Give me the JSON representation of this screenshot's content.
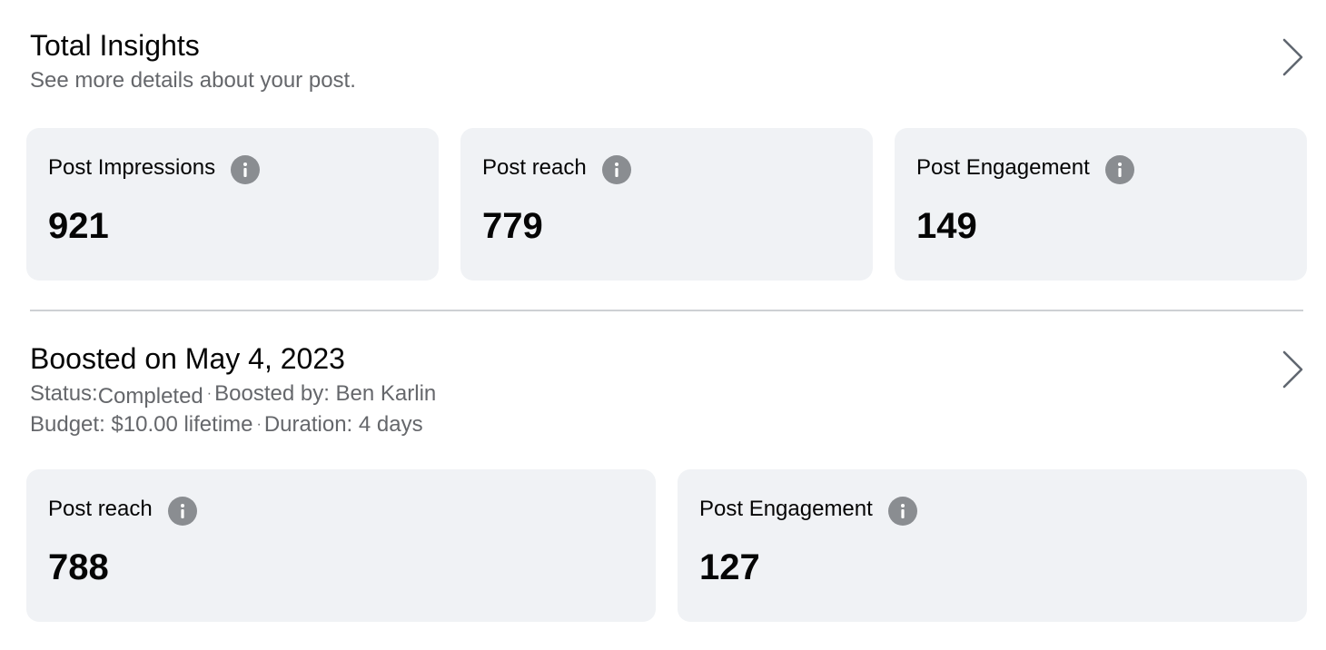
{
  "total_insights": {
    "title": "Total Insights",
    "subtitle": "See more details about your post.",
    "chevron_icon": "chevron-right-icon",
    "cards": [
      {
        "label": "Post Impressions",
        "value": "921",
        "icon": "info-icon"
      },
      {
        "label": "Post reach",
        "value": "779",
        "icon": "info-icon"
      },
      {
        "label": "Post Engagement",
        "value": "149",
        "icon": "info-icon"
      }
    ]
  },
  "boost": {
    "title": "Boosted on May 4, 2023",
    "status_label": "Status:",
    "status_value": "Completed",
    "separator": "·",
    "boosted_by": "Boosted by: Ben Karlin",
    "budget": "Budget: $10.00 lifetime",
    "duration": "Duration: 4 days",
    "chevron_icon": "chevron-right-icon",
    "cards": [
      {
        "label": "Post reach",
        "value": "788",
        "icon": "info-icon"
      },
      {
        "label": "Post Engagement",
        "value": "127",
        "icon": "info-icon"
      }
    ]
  },
  "colors": {
    "card_bg": "#f0f2f5",
    "text_primary": "#050505",
    "text_secondary": "#65676b",
    "icon_gray": "#8a8d91",
    "divider": "#ced0d4"
  }
}
